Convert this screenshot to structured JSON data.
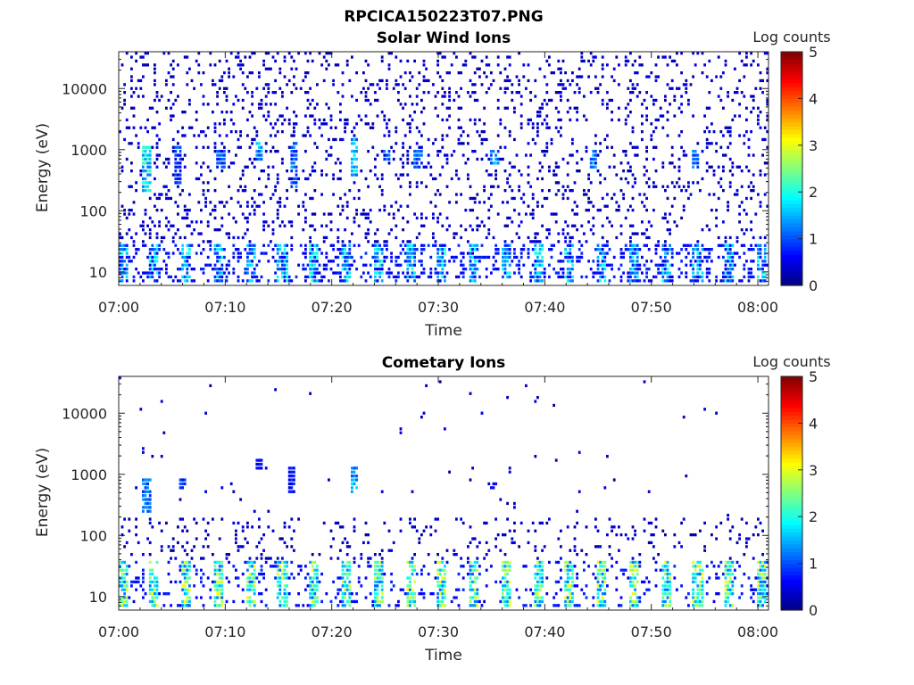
{
  "figure": {
    "title": "RPCICA150223T07.PNG"
  },
  "colorbar": {
    "label": "Log counts",
    "ticks": [
      0,
      1,
      2,
      3,
      4,
      5
    ],
    "range": [
      0,
      5
    ],
    "colormap": "jet"
  },
  "chart_data": [
    {
      "type": "heatmap",
      "title": "Solar Wind Ions",
      "xlabel": "Time",
      "ylabel": "Energy (eV)",
      "x_ticks": [
        "07:00",
        "07:10",
        "07:20",
        "07:30",
        "07:40",
        "07:50",
        "08:00"
      ],
      "x_range": [
        "07:00",
        "08:01"
      ],
      "y_scale": "log",
      "y_ticks": [
        10,
        100,
        1000,
        10000
      ],
      "y_range": [
        6,
        40000
      ],
      "colorbar_label": "Log counts",
      "c_range": [
        0,
        5
      ],
      "background_sparsity": "dense",
      "bursts": [
        {
          "time": "07:02.5",
          "energy_low": 200,
          "energy_high": 1300,
          "peak_log_counts": 2.3
        },
        {
          "time": "07:05.5",
          "energy_low": 300,
          "energy_high": 1200,
          "peak_log_counts": 1.2
        },
        {
          "time": "07:09.5",
          "energy_low": 500,
          "energy_high": 1100,
          "peak_log_counts": 1.2
        },
        {
          "time": "07:13.0",
          "energy_low": 700,
          "energy_high": 1500,
          "peak_log_counts": 1.8
        },
        {
          "time": "07:16.3",
          "energy_low": 250,
          "energy_high": 1400,
          "peak_log_counts": 1.5
        },
        {
          "time": "07:22.0",
          "energy_low": 400,
          "energy_high": 1600,
          "peak_log_counts": 2.0
        },
        {
          "time": "07:25.0",
          "energy_low": 700,
          "energy_high": 1100,
          "peak_log_counts": 1.6
        },
        {
          "time": "07:28.0",
          "energy_low": 500,
          "energy_high": 1100,
          "peak_log_counts": 1.3
        },
        {
          "time": "07:35.2",
          "energy_low": 550,
          "energy_high": 1000,
          "peak_log_counts": 1.8
        },
        {
          "time": "07:44.5",
          "energy_low": 500,
          "energy_high": 1100,
          "peak_log_counts": 1.8
        },
        {
          "time": "07:54.0",
          "energy_low": 500,
          "energy_high": 1000,
          "peak_log_counts": 1.4
        }
      ],
      "low_energy_band": {
        "energy_low": 6,
        "energy_high": 30,
        "typical_log_counts": 1.0,
        "max_log_counts": 2.0
      }
    },
    {
      "type": "heatmap",
      "title": "Cometary Ions",
      "xlabel": "Time",
      "ylabel": "Energy (eV)",
      "x_ticks": [
        "07:00",
        "07:10",
        "07:20",
        "07:30",
        "07:40",
        "07:50",
        "08:00"
      ],
      "x_range": [
        "07:00",
        "08:01"
      ],
      "y_scale": "log",
      "y_ticks": [
        10,
        100,
        1000,
        10000
      ],
      "y_range": [
        6,
        40000
      ],
      "colorbar_label": "Log counts",
      "c_range": [
        0,
        5
      ],
      "background_sparsity": "sparse",
      "bursts": [
        {
          "time": "07:02.5",
          "energy_low": 250,
          "energy_high": 900,
          "peak_log_counts": 1.5
        },
        {
          "time": "07:05.8",
          "energy_low": 600,
          "energy_high": 900,
          "peak_log_counts": 1.2
        },
        {
          "time": "07:13.0",
          "energy_low": 1300,
          "energy_high": 1800,
          "peak_log_counts": 0.8
        },
        {
          "time": "07:16.2",
          "energy_low": 500,
          "energy_high": 1500,
          "peak_log_counts": 0.9
        },
        {
          "time": "07:22.0",
          "energy_low": 500,
          "energy_high": 1400,
          "peak_log_counts": 1.8
        },
        {
          "time": "07:35.0",
          "energy_low": 600,
          "energy_high": 800,
          "peak_log_counts": 0.9
        }
      ],
      "low_energy_band": {
        "energy_low": 6,
        "energy_high": 40,
        "typical_log_counts": 1.7,
        "max_log_counts": 3.0
      }
    }
  ]
}
